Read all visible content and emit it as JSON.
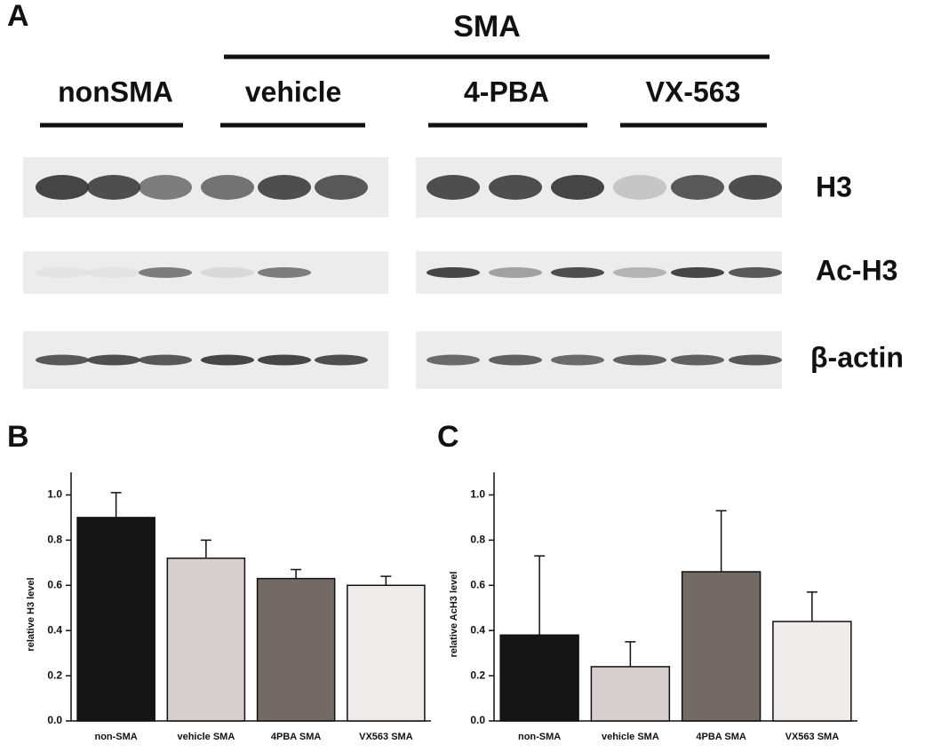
{
  "panel_a": {
    "panel": "A",
    "group": "SMA",
    "lanes": [
      "nonSMA",
      "vehicle",
      "4-PBA",
      "VX-563"
    ],
    "proteins": [
      "H3",
      "Ac-H3",
      "β-actin"
    ]
  },
  "chart_data": [
    {
      "type": "bar",
      "panel": "B",
      "y_label": "relative H3 level",
      "categories": [
        "non-SMA",
        "vehicle SMA",
        "4PBA SMA",
        "VX563 SMA"
      ],
      "values": [
        0.9,
        0.72,
        0.63,
        0.6
      ],
      "errors": [
        0.11,
        0.08,
        0.04,
        0.04
      ],
      "colors": [
        "#151515",
        "#d6cfcd",
        "#736a66",
        "#efebea"
      ],
      "ylim": [
        0,
        1.1
      ],
      "yticks": [
        {
          "value": 0,
          "label": "0.0"
        },
        {
          "value": 0.2,
          "label": "0.2"
        },
        {
          "value": 0.4,
          "label": "0.4"
        },
        {
          "value": 0.6,
          "label": "0.6"
        },
        {
          "value": 0.8,
          "label": "0.8"
        },
        {
          "value": 1,
          "label": "1.0"
        }
      ]
    },
    {
      "type": "bar",
      "panel": "C",
      "y_label": "relative AcH3 level",
      "categories": [
        "non-SMA",
        "vehicle SMA",
        "4PBA SMA",
        "VX563 SMA"
      ],
      "values": [
        0.38,
        0.24,
        0.66,
        0.44
      ],
      "errors": [
        0.35,
        0.11,
        0.27,
        0.13
      ],
      "colors": [
        "#151515",
        "#d6cfcd",
        "#736a66",
        "#efebea"
      ],
      "ylim": [
        0,
        1.1
      ],
      "yticks": [
        {
          "value": 0,
          "label": "0.0"
        },
        {
          "value": 0.2,
          "label": "0.2"
        },
        {
          "value": 0.4,
          "label": "0.4"
        },
        {
          "value": 0.6,
          "label": "0.6"
        },
        {
          "value": 0.8,
          "label": "0.8"
        },
        {
          "value": 1,
          "label": "1.0"
        }
      ]
    }
  ]
}
